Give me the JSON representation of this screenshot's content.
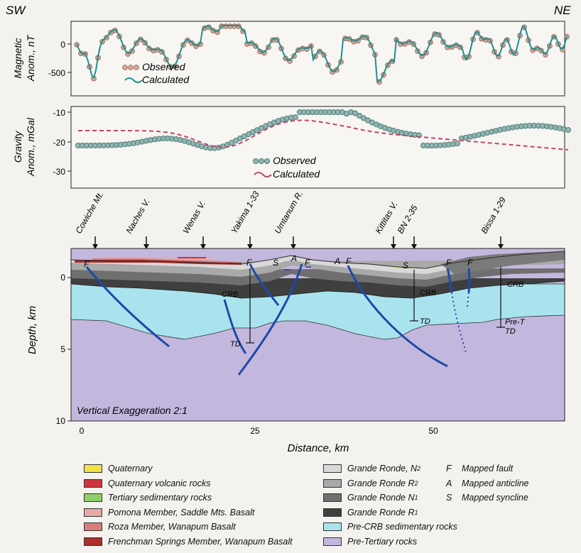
{
  "directions": {
    "left": "SW",
    "right": "NE"
  },
  "magnetic": {
    "ylabel_line1": "Magnetic",
    "ylabel_line2": "Anom., nT",
    "ticks": [
      "0",
      "-500"
    ],
    "legend_observed": "Observed",
    "legend_calculated": "Calculated",
    "colors": {
      "observed_fill": "#d9a89a",
      "observed_stroke": "#8a5a4a",
      "calculated": "#1f8f8f"
    }
  },
  "gravity": {
    "ylabel_line1": "Gravity",
    "ylabel_line2": "Anom., mGal",
    "ticks": [
      "-10",
      "-20",
      "-30"
    ],
    "legend_observed": "Observed",
    "legend_calculated": "Calculated",
    "colors": {
      "observed_fill": "#8fb5b0",
      "observed_stroke": "#3e6e6a",
      "calculated": "#c0456a"
    }
  },
  "wells": [
    {
      "label": "Cowiche Mt."
    },
    {
      "label": "Naches V."
    },
    {
      "label": "Wenas V."
    },
    {
      "label": "Yakima 1-33"
    },
    {
      "label": "Umtanum R."
    },
    {
      "label": "Kittitas V."
    },
    {
      "label": "BN 2-35"
    },
    {
      "label": "Bissa 1-29"
    }
  ],
  "section": {
    "ylabel": "Depth, km",
    "xlabel": "Distance, km",
    "yticks": [
      "0",
      "5",
      "10"
    ],
    "xticks": [
      "0",
      "25",
      "50"
    ],
    "exaggeration": "Vertical Exaggeration 2:1",
    "structure_labels": {
      "F": "F",
      "S": "S",
      "A": "A",
      "CRB": "CRB",
      "TD": "TD",
      "PreT": "Pre-T"
    },
    "fault_color": "#1f49a8"
  },
  "legend": {
    "col1": [
      {
        "label": "Quaternary",
        "color": "#f0e04a"
      },
      {
        "label": "Quaternary volcanic rocks",
        "color": "#d0343c"
      },
      {
        "label": "Tertiary sedimentary rocks",
        "color": "#8fcf6a"
      },
      {
        "label": "Pomona Member, Saddle Mts. Basalt",
        "color": "#e8a9a5"
      },
      {
        "label": "Roza Member, Wanapum Basalt",
        "color": "#d97e7a"
      },
      {
        "label": "Frenchman Springs Member, Wanapum Basalt",
        "color": "#a9302c"
      }
    ],
    "col2": [
      {
        "label": "Grande Ronde, N",
        "sub": "2",
        "color": "#d9d9d9"
      },
      {
        "label": "Grande Ronde R",
        "sub": "2",
        "color": "#a9a9a9"
      },
      {
        "label": "Grande Ronde N",
        "sub": "1",
        "color": "#6f6f6f"
      },
      {
        "label": "Grande Ronde R",
        "sub": "1",
        "color": "#3f3f3f"
      },
      {
        "label": "Pre-CRB sedimentary rocks",
        "color": "#a9e4ee"
      },
      {
        "label": "Pre-Tertiary rocks",
        "color": "#c4b7dd"
      }
    ],
    "col3": [
      {
        "sym": "F",
        "label": "Mapped fault"
      },
      {
        "sym": "A",
        "label": "Mapped anticline"
      },
      {
        "sym": "S",
        "label": "Mapped syncline"
      }
    ]
  }
}
